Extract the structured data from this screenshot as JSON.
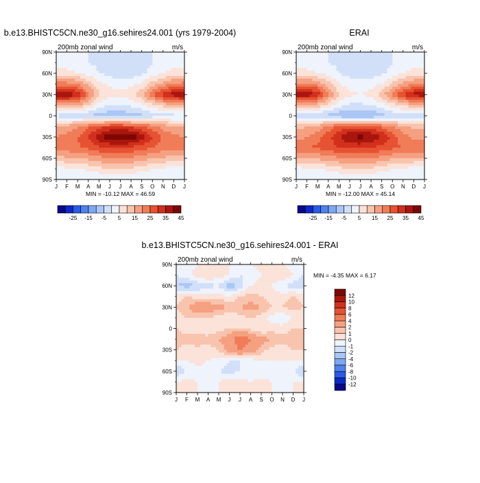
{
  "page": {
    "left_title": "b.e13.BHISTC5CN.ne30_g16.sehires24.001 (yrs 1979-2004)",
    "right_title": "ERAI",
    "diff_title": "b.e13.BHISTC5CN.ne30_g16.sehires24.001 - ERAI"
  },
  "colors": {
    "model_obs_levels": [
      "#08088a",
      "#0b29c8",
      "#2a5ae6",
      "#4f82ee",
      "#7ea7f2",
      "#aac6f5",
      "#d1e0f8",
      "#eef3fc",
      "#fbe3d9",
      "#f8c4ae",
      "#f5a081",
      "#f07c58",
      "#e65232",
      "#d0301c",
      "#aa160d",
      "#7d0703"
    ],
    "diff_levels": [
      "#08088a",
      "#0b29c8",
      "#2a5ae6",
      "#4f82ee",
      "#7ea7f2",
      "#aac6f5",
      "#d1e0f8",
      "#eef3fc",
      "#fbe3d9",
      "#f8c4ae",
      "#f5a081",
      "#f07c58",
      "#e65232",
      "#d0301c",
      "#aa160d",
      "#7d0703"
    ]
  },
  "chart_data": [
    {
      "type": "heatmap",
      "panel": "model",
      "title": "b.e13.BHISTC5CN.ne30_g16.sehires24.001 (yrs 1979-2004)",
      "left_label": "200mb zonal wind",
      "right_label": "m/s",
      "x_ticks": [
        "J",
        "F",
        "M",
        "A",
        "M",
        "J",
        "J",
        "A",
        "S",
        "O",
        "N",
        "D",
        "J"
      ],
      "y_ticks": [
        "90N",
        "60N",
        "30N",
        "0",
        "30S",
        "60S",
        "90S"
      ],
      "min_label": "MIN = -10.12",
      "max_label": "MAX =  46.59",
      "colorbar_labels": [
        "-25",
        "-15",
        "-5",
        "5",
        "15",
        "25",
        "35",
        "45"
      ],
      "grid_months": [
        "J",
        "F",
        "M",
        "A",
        "M",
        "J",
        "J",
        "A",
        "S",
        "O",
        "N",
        "D",
        "J"
      ],
      "grid_lats": [
        90,
        75,
        60,
        45,
        30,
        15,
        0,
        -15,
        -30,
        -45,
        -60,
        -75,
        -90
      ],
      "values": [
        [
          0,
          0,
          0,
          0,
          0,
          0,
          0,
          0,
          0,
          0,
          0,
          0,
          0
        ],
        [
          3,
          2,
          1,
          0,
          -1,
          -2,
          -3,
          -3,
          -2,
          0,
          2,
          3,
          3
        ],
        [
          8,
          7,
          5,
          3,
          0,
          -2,
          -3,
          -3,
          -1,
          2,
          5,
          7,
          8
        ],
        [
          22,
          22,
          20,
          13,
          6,
          4,
          3,
          4,
          6,
          12,
          17,
          21,
          22
        ],
        [
          41,
          40,
          35,
          22,
          11,
          7,
          6,
          8,
          14,
          24,
          33,
          38,
          41
        ],
        [
          15,
          16,
          15,
          10,
          3,
          0,
          0,
          1,
          4,
          8,
          12,
          14,
          15
        ],
        [
          -2,
          -3,
          -4,
          -6,
          -8,
          -9,
          -9,
          -8,
          -6,
          -3,
          -2,
          -2,
          -2
        ],
        [
          15,
          17,
          19,
          24,
          28,
          30,
          30,
          29,
          26,
          22,
          18,
          16,
          15
        ],
        [
          20,
          22,
          25,
          30,
          38,
          44,
          46,
          44,
          38,
          30,
          24,
          21,
          20
        ],
        [
          22,
          23,
          24,
          26,
          29,
          30,
          30,
          29,
          27,
          25,
          23,
          22,
          22
        ],
        [
          13,
          14,
          15,
          16,
          18,
          20,
          20,
          19,
          17,
          15,
          14,
          13,
          13
        ],
        [
          3,
          4,
          5,
          6,
          8,
          10,
          10,
          9,
          7,
          5,
          4,
          3,
          3
        ],
        [
          0,
          0,
          0,
          0,
          0,
          0,
          0,
          0,
          0,
          0,
          0,
          0,
          0
        ]
      ]
    },
    {
      "type": "heatmap",
      "panel": "obs",
      "title": "ERAI",
      "left_label": "200mb zonal wind",
      "right_label": "m/s",
      "x_ticks": [
        "J",
        "F",
        "M",
        "A",
        "M",
        "J",
        "J",
        "A",
        "S",
        "O",
        "N",
        "D",
        "J"
      ],
      "y_ticks": [
        "90N",
        "60N",
        "30N",
        "0",
        "30S",
        "60S",
        "90S"
      ],
      "min_label": "MIN = -12.00",
      "max_label": "MAX =  45.14",
      "colorbar_labels": [
        "-25",
        "-15",
        "-5",
        "5",
        "15",
        "25",
        "35",
        "45"
      ],
      "grid_months": [
        "J",
        "F",
        "M",
        "A",
        "M",
        "J",
        "J",
        "A",
        "S",
        "O",
        "N",
        "D",
        "J"
      ],
      "grid_lats": [
        90,
        75,
        60,
        45,
        30,
        15,
        0,
        -15,
        -30,
        -45,
        -60,
        -75,
        -90
      ],
      "values": [
        [
          0,
          0,
          0,
          0,
          0,
          0,
          0,
          0,
          0,
          0,
          0,
          0,
          0
        ],
        [
          3,
          2,
          1,
          0,
          -1,
          -2,
          -3,
          -3,
          -2,
          0,
          2,
          3,
          3
        ],
        [
          8,
          7,
          5,
          3,
          0,
          -2,
          -3,
          -3,
          -1,
          2,
          5,
          7,
          8
        ],
        [
          20,
          21,
          19,
          12,
          5,
          3,
          2,
          3,
          5,
          11,
          16,
          20,
          20
        ],
        [
          40,
          39,
          34,
          21,
          10,
          6,
          5,
          7,
          13,
          22,
          31,
          37,
          40
        ],
        [
          13,
          14,
          13,
          8,
          2,
          -1,
          -1,
          0,
          3,
          7,
          11,
          13,
          13
        ],
        [
          -3,
          -4,
          -5,
          -7,
          -9,
          -11,
          -11,
          -10,
          -7,
          -4,
          -3,
          -3,
          -3
        ],
        [
          13,
          15,
          17,
          22,
          26,
          28,
          28,
          27,
          24,
          20,
          16,
          14,
          13
        ],
        [
          18,
          20,
          23,
          28,
          35,
          40,
          42,
          40,
          35,
          28,
          22,
          19,
          18
        ],
        [
          24,
          25,
          26,
          28,
          30,
          31,
          31,
          30,
          28,
          26,
          25,
          24,
          24
        ],
        [
          14,
          15,
          16,
          17,
          19,
          21,
          21,
          20,
          18,
          16,
          15,
          14,
          14
        ],
        [
          3,
          4,
          5,
          6,
          8,
          10,
          10,
          9,
          7,
          5,
          4,
          3,
          3
        ],
        [
          0,
          0,
          0,
          0,
          0,
          0,
          0,
          0,
          0,
          0,
          0,
          0,
          0
        ]
      ]
    },
    {
      "type": "heatmap",
      "panel": "diff",
      "title": "b.e13.BHISTC5CN.ne30_g16.sehires24.001 - ERAI",
      "left_label": "200mb zonal wind",
      "right_label": "m/s",
      "x_ticks": [
        "J",
        "F",
        "M",
        "A",
        "M",
        "J",
        "J",
        "A",
        "S",
        "O",
        "N",
        "D",
        "J"
      ],
      "y_ticks": [
        "90N",
        "60N",
        "30N",
        "0",
        "30S",
        "60S",
        "90S"
      ],
      "min_label": "MIN =  -4.35",
      "max_label": "MAX =   6.17",
      "colorbar_labels": [
        "12",
        "10",
        "8",
        "6",
        "4",
        "2",
        "1",
        "0",
        "-1",
        "-2",
        "-4",
        "-6",
        "-8",
        "-10",
        "-12"
      ],
      "grid_months": [
        "J",
        "F",
        "M",
        "A",
        "M",
        "J",
        "J",
        "A",
        "S",
        "O",
        "N",
        "D",
        "J"
      ],
      "grid_lats": [
        90,
        75,
        60,
        45,
        30,
        15,
        0,
        -15,
        -30,
        -45,
        -60,
        -75,
        -90
      ],
      "values": [
        [
          0,
          -0.5,
          0,
          0.5,
          1,
          0,
          -0.5,
          0,
          0.5,
          0,
          0,
          -0.5,
          0
        ],
        [
          -1,
          -0.5,
          0.5,
          1,
          0.5,
          0,
          -1,
          -1,
          0,
          0.5,
          1,
          0,
          -1
        ],
        [
          -2,
          -2.5,
          -2,
          -1.5,
          -1,
          -3,
          -1.5,
          0,
          0.5,
          0,
          -1,
          -1.5,
          -2
        ],
        [
          0.5,
          1,
          0.5,
          0.5,
          0.5,
          0,
          1,
          1.5,
          1,
          0.5,
          0.5,
          1,
          0.5
        ],
        [
          1,
          2,
          3,
          3,
          2.5,
          2,
          2,
          2.5,
          2,
          1,
          1,
          1.5,
          1
        ],
        [
          0.5,
          1,
          1,
          1,
          0.5,
          0,
          0.5,
          1,
          0.5,
          -0.5,
          -1,
          0,
          0.5
        ],
        [
          1,
          0.5,
          0,
          0,
          0.5,
          1,
          1,
          0.5,
          0,
          0.5,
          0.5,
          1,
          1
        ],
        [
          1.5,
          1.5,
          2,
          1.5,
          2,
          3,
          5.5,
          4,
          2.5,
          2,
          1.5,
          1.5,
          1.5
        ],
        [
          1,
          0.5,
          0.5,
          0.5,
          1,
          3,
          4,
          3,
          1.5,
          0.5,
          0.5,
          1,
          1
        ],
        [
          0,
          0,
          0.5,
          0,
          -0.5,
          -1,
          -1,
          -0.5,
          0,
          0,
          0,
          0,
          0
        ],
        [
          -2,
          -1,
          -0.5,
          -0.5,
          -1,
          -1.5,
          -1,
          -0.5,
          -1,
          -1,
          -1,
          -1,
          -2
        ],
        [
          0,
          0.5,
          0,
          -0.5,
          0,
          0.5,
          0.5,
          0,
          0.5,
          0,
          -0.5,
          0,
          0
        ],
        [
          0,
          0,
          0,
          0,
          0,
          0,
          0,
          0,
          0,
          0,
          0,
          0,
          0
        ]
      ]
    }
  ]
}
